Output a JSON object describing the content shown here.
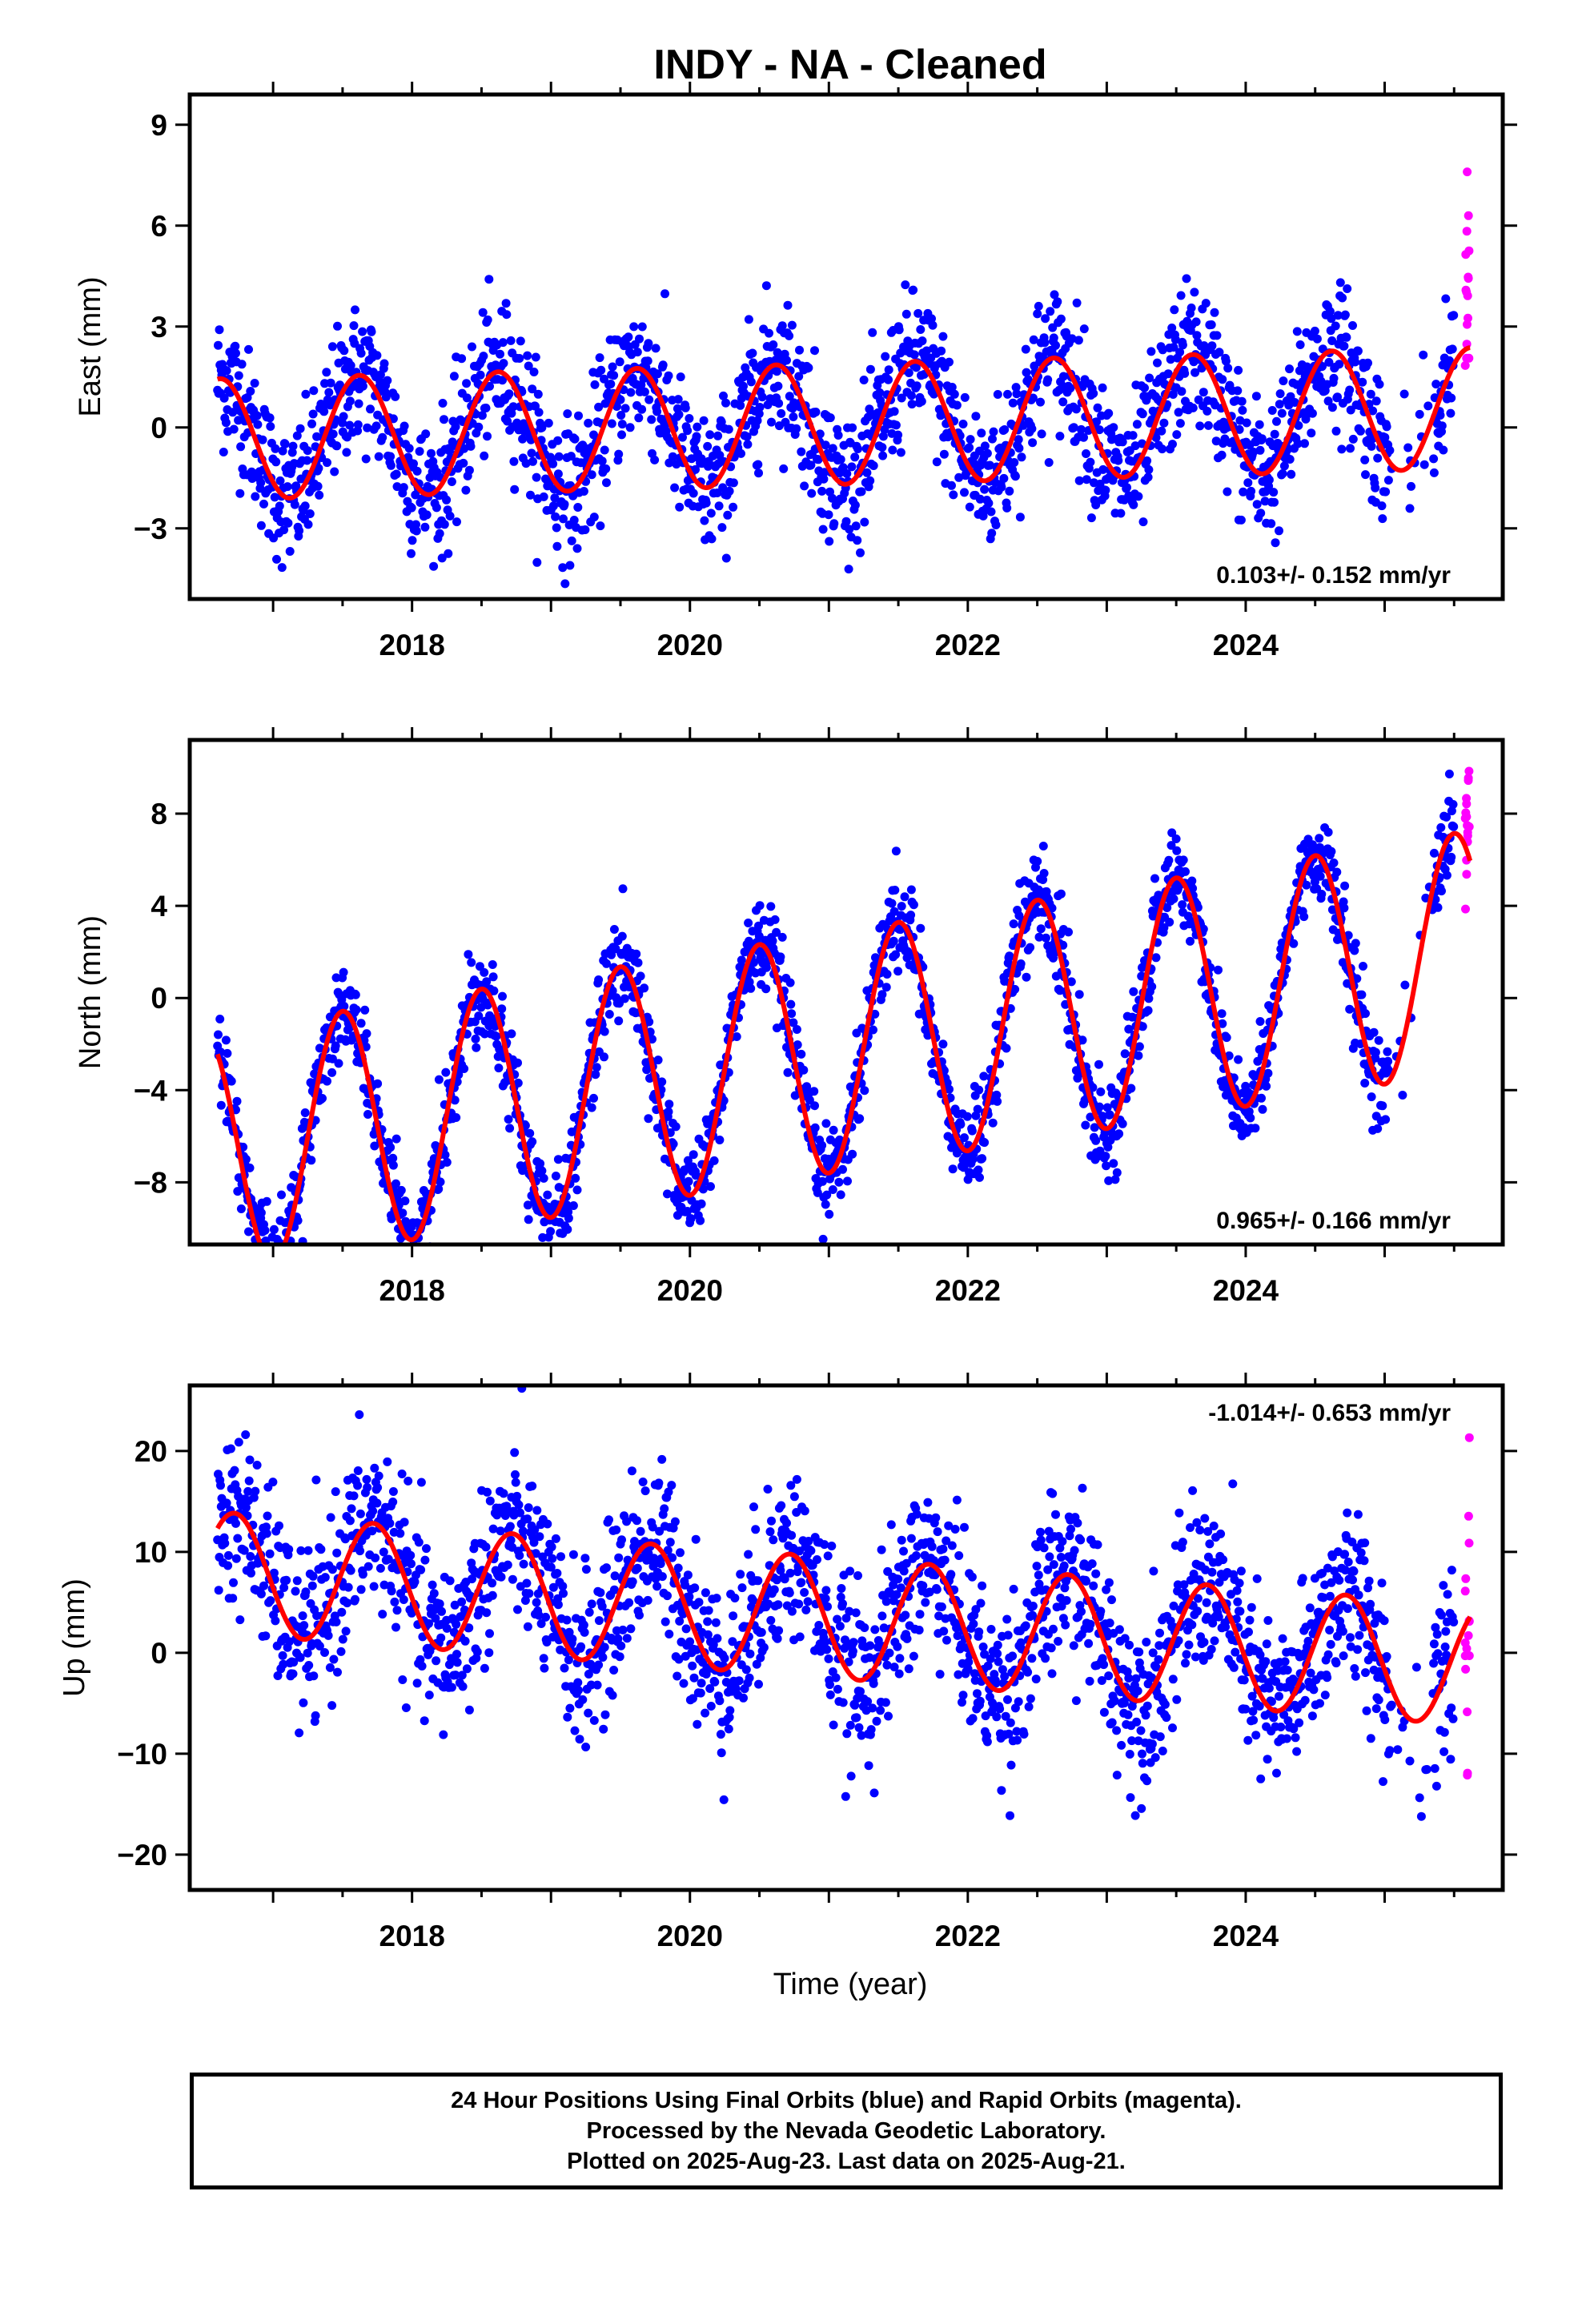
{
  "title": "INDY  - NA - Cleaned",
  "colors": {
    "final_orbits": "#0000ff",
    "rapid_orbits": "#ff00ff",
    "model": "#ff0000",
    "frame": "#000000"
  },
  "xlabel": "Time (year)",
  "chart_data": [
    {
      "type": "scatter",
      "panel": "East",
      "ylabel": "East (mm)",
      "xlim": [
        2016.4,
        2025.85
      ],
      "ylim": [
        -5.1,
        9.9
      ],
      "yticks": [
        -3,
        0,
        3,
        6,
        9
      ],
      "xticks": [
        2018,
        2020,
        2022,
        2024
      ],
      "rate": "0.103+/- 0.152 mm/yr",
      "rate_position": "bottom-right",
      "series": [
        {
          "name": "Final Orbits (blue)",
          "values": "daily positions 2016.6–2025.5, seasonal ±2 mm, scatter ~1 mm"
        },
        {
          "name": "Rapid Orbits (magenta)",
          "values": "daily positions 2025.5–2025.65"
        }
      ],
      "model": {
        "amplitude": 1.8,
        "rate": 0.103,
        "offset": 0.1,
        "peak_phase": 0.62
      }
    },
    {
      "type": "scatter",
      "panel": "North",
      "ylabel": "North (mm)",
      "xlim": [
        2016.4,
        2025.85
      ],
      "ylim": [
        -10.7,
        11.2
      ],
      "yticks": [
        -8,
        -4,
        0,
        4,
        8
      ],
      "xticks": [
        2018,
        2020,
        2022,
        2024
      ],
      "rate": "0.965+/- 0.166 mm/yr",
      "rate_position": "bottom-right",
      "series": [
        {
          "name": "Final Orbits (blue)",
          "values": "daily positions, seasonal ±5 mm, scatter ~0.8 mm"
        },
        {
          "name": "Rapid Orbits (magenta)",
          "values": "daily positions 2025.5–2025.65"
        }
      ],
      "model": {
        "amplitude": 5.2,
        "rate": 0.965,
        "offset": -2.4,
        "peak_phase": 0.5
      }
    },
    {
      "type": "scatter",
      "panel": "Up",
      "ylabel": "Up (mm)",
      "xlim": [
        2016.4,
        2025.85
      ],
      "ylim": [
        -23.5,
        26.5
      ],
      "yticks": [
        -20,
        -10,
        0,
        10,
        20
      ],
      "xticks": [
        2018,
        2020,
        2022,
        2024
      ],
      "rate": "-1.014+/- 0.653 mm/yr",
      "rate_position": "top-right",
      "series": [
        {
          "name": "Final Orbits (blue)",
          "values": "daily positions, seasonal ±6 mm, scatter ~4 mm"
        },
        {
          "name": "Rapid Orbits (magenta)",
          "values": "daily positions 2025.5–2025.65"
        }
      ],
      "model": {
        "amplitude": 6.0,
        "rate": -1.014,
        "offset": 3.5,
        "peak_phase": 0.72
      }
    }
  ],
  "footer": {
    "line1": "24 Hour Positions Using Final Orbits (blue) and Rapid Orbits (magenta).",
    "line2": "Processed by the Nevada Geodetic Laboratory.",
    "line3": "Plotted on 2025-Aug-23. Last data on 2025-Aug-21."
  }
}
